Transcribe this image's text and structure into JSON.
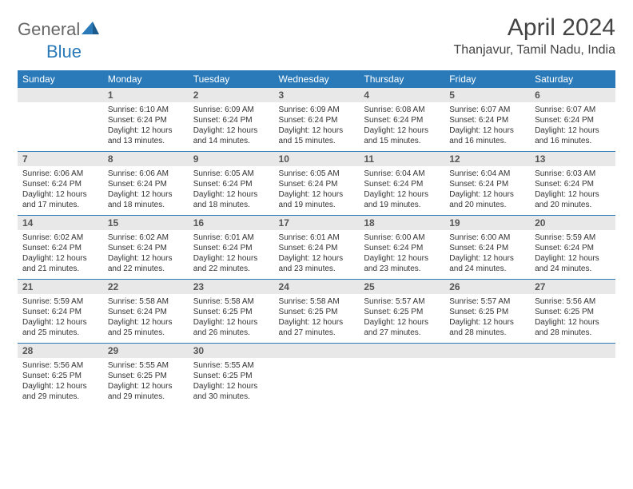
{
  "brand": {
    "part1": "General",
    "part2": "Blue"
  },
  "title": "April 2024",
  "location": "Thanjavur, Tamil Nadu, India",
  "colors": {
    "header_bg": "#2a7ab9",
    "header_text": "#ffffff",
    "daynum_bg": "#e8e8e8",
    "daynum_text": "#555555",
    "body_text": "#333333",
    "row_divider": "#2a7ab9",
    "page_bg": "#ffffff"
  },
  "typography": {
    "title_fontsize": 30,
    "location_fontsize": 16,
    "th_fontsize": 12,
    "daynum_fontsize": 12,
    "body_fontsize": 10
  },
  "layout": {
    "columns": 7,
    "rows": 5,
    "first_weekday_offset": 1
  },
  "weekdays": [
    "Sunday",
    "Monday",
    "Tuesday",
    "Wednesday",
    "Thursday",
    "Friday",
    "Saturday"
  ],
  "days": [
    {
      "n": "1",
      "sunrise": "6:10 AM",
      "sunset": "6:24 PM",
      "daylight": "12 hours and 13 minutes."
    },
    {
      "n": "2",
      "sunrise": "6:09 AM",
      "sunset": "6:24 PM",
      "daylight": "12 hours and 14 minutes."
    },
    {
      "n": "3",
      "sunrise": "6:09 AM",
      "sunset": "6:24 PM",
      "daylight": "12 hours and 15 minutes."
    },
    {
      "n": "4",
      "sunrise": "6:08 AM",
      "sunset": "6:24 PM",
      "daylight": "12 hours and 15 minutes."
    },
    {
      "n": "5",
      "sunrise": "6:07 AM",
      "sunset": "6:24 PM",
      "daylight": "12 hours and 16 minutes."
    },
    {
      "n": "6",
      "sunrise": "6:07 AM",
      "sunset": "6:24 PM",
      "daylight": "12 hours and 16 minutes."
    },
    {
      "n": "7",
      "sunrise": "6:06 AM",
      "sunset": "6:24 PM",
      "daylight": "12 hours and 17 minutes."
    },
    {
      "n": "8",
      "sunrise": "6:06 AM",
      "sunset": "6:24 PM",
      "daylight": "12 hours and 18 minutes."
    },
    {
      "n": "9",
      "sunrise": "6:05 AM",
      "sunset": "6:24 PM",
      "daylight": "12 hours and 18 minutes."
    },
    {
      "n": "10",
      "sunrise": "6:05 AM",
      "sunset": "6:24 PM",
      "daylight": "12 hours and 19 minutes."
    },
    {
      "n": "11",
      "sunrise": "6:04 AM",
      "sunset": "6:24 PM",
      "daylight": "12 hours and 19 minutes."
    },
    {
      "n": "12",
      "sunrise": "6:04 AM",
      "sunset": "6:24 PM",
      "daylight": "12 hours and 20 minutes."
    },
    {
      "n": "13",
      "sunrise": "6:03 AM",
      "sunset": "6:24 PM",
      "daylight": "12 hours and 20 minutes."
    },
    {
      "n": "14",
      "sunrise": "6:02 AM",
      "sunset": "6:24 PM",
      "daylight": "12 hours and 21 minutes."
    },
    {
      "n": "15",
      "sunrise": "6:02 AM",
      "sunset": "6:24 PM",
      "daylight": "12 hours and 22 minutes."
    },
    {
      "n": "16",
      "sunrise": "6:01 AM",
      "sunset": "6:24 PM",
      "daylight": "12 hours and 22 minutes."
    },
    {
      "n": "17",
      "sunrise": "6:01 AM",
      "sunset": "6:24 PM",
      "daylight": "12 hours and 23 minutes."
    },
    {
      "n": "18",
      "sunrise": "6:00 AM",
      "sunset": "6:24 PM",
      "daylight": "12 hours and 23 minutes."
    },
    {
      "n": "19",
      "sunrise": "6:00 AM",
      "sunset": "6:24 PM",
      "daylight": "12 hours and 24 minutes."
    },
    {
      "n": "20",
      "sunrise": "5:59 AM",
      "sunset": "6:24 PM",
      "daylight": "12 hours and 24 minutes."
    },
    {
      "n": "21",
      "sunrise": "5:59 AM",
      "sunset": "6:24 PM",
      "daylight": "12 hours and 25 minutes."
    },
    {
      "n": "22",
      "sunrise": "5:58 AM",
      "sunset": "6:24 PM",
      "daylight": "12 hours and 25 minutes."
    },
    {
      "n": "23",
      "sunrise": "5:58 AM",
      "sunset": "6:25 PM",
      "daylight": "12 hours and 26 minutes."
    },
    {
      "n": "24",
      "sunrise": "5:58 AM",
      "sunset": "6:25 PM",
      "daylight": "12 hours and 27 minutes."
    },
    {
      "n": "25",
      "sunrise": "5:57 AM",
      "sunset": "6:25 PM",
      "daylight": "12 hours and 27 minutes."
    },
    {
      "n": "26",
      "sunrise": "5:57 AM",
      "sunset": "6:25 PM",
      "daylight": "12 hours and 28 minutes."
    },
    {
      "n": "27",
      "sunrise": "5:56 AM",
      "sunset": "6:25 PM",
      "daylight": "12 hours and 28 minutes."
    },
    {
      "n": "28",
      "sunrise": "5:56 AM",
      "sunset": "6:25 PM",
      "daylight": "12 hours and 29 minutes."
    },
    {
      "n": "29",
      "sunrise": "5:55 AM",
      "sunset": "6:25 PM",
      "daylight": "12 hours and 29 minutes."
    },
    {
      "n": "30",
      "sunrise": "5:55 AM",
      "sunset": "6:25 PM",
      "daylight": "12 hours and 30 minutes."
    }
  ],
  "labels": {
    "sunrise": "Sunrise:",
    "sunset": "Sunset:",
    "daylight": "Daylight:"
  }
}
